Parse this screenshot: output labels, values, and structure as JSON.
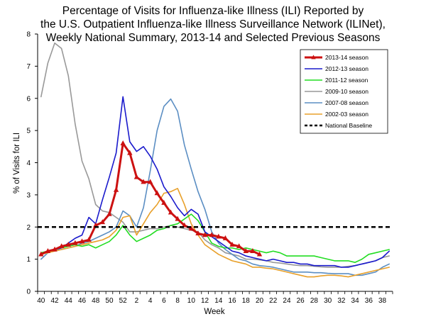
{
  "chart_data": {
    "type": "line",
    "title": [
      "Percentage of Visits for Influenza-like Illness (ILI) Reported by",
      "the U.S. Outpatient Influenza-like Illness Surveillance Network (ILINet),",
      "Weekly National Summary, 2013-14 and Selected Previous Seasons"
    ],
    "xlabel": "Week",
    "ylabel": "% of Visits for ILI",
    "ylim": [
      0,
      8
    ],
    "y_ticks": [
      0,
      1,
      2,
      3,
      4,
      5,
      6,
      7,
      8
    ],
    "x_ticks": [
      "40",
      "42",
      "44",
      "46",
      "48",
      "50",
      "52",
      "2",
      "4",
      "6",
      "8",
      "10",
      "12",
      "14",
      "16",
      "18",
      "20",
      "22",
      "24",
      "26",
      "28",
      "30",
      "32",
      "34",
      "36",
      "38"
    ],
    "weeks": [
      40,
      41,
      42,
      43,
      44,
      45,
      46,
      47,
      48,
      49,
      50,
      51,
      52,
      1,
      2,
      3,
      4,
      5,
      6,
      7,
      8,
      9,
      10,
      11,
      12,
      13,
      14,
      15,
      16,
      17,
      18,
      19,
      20,
      21,
      22,
      23,
      24,
      25,
      26,
      27,
      28,
      29,
      30,
      31,
      32,
      33,
      34,
      35,
      36,
      37,
      38,
      39
    ],
    "legend_position": "top-right",
    "series": [
      {
        "name": "2009-10 season",
        "color": "#999999",
        "values": [
          6.05,
          7.1,
          7.72,
          7.55,
          6.7,
          5.2,
          4.05,
          3.5,
          2.7,
          2.5,
          2.45,
          2.3,
          2.15,
          1.85,
          1.85,
          1.9,
          1.95,
          1.95,
          2.0,
          2.05,
          2.0,
          1.95,
          1.9,
          1.85,
          1.6,
          1.45,
          1.35,
          1.2,
          1.15,
          1.1,
          1.0,
          1.0,
          0.98,
          0.95,
          0.9,
          0.88,
          0.85,
          0.82,
          0.8,
          0.8,
          0.78,
          0.76,
          0.75,
          0.75,
          0.75,
          0.78,
          0.8,
          0.85,
          0.9,
          0.95,
          1.05,
          1.1
        ]
      },
      {
        "name": "2007-08 season",
        "color": "#5b8ec3",
        "values": [
          1.0,
          1.2,
          1.3,
          1.3,
          1.35,
          1.4,
          1.5,
          1.55,
          1.65,
          1.75,
          1.85,
          2.0,
          2.5,
          2.35,
          2.0,
          2.6,
          3.75,
          5.0,
          5.75,
          5.98,
          5.6,
          4.55,
          3.8,
          3.1,
          2.55,
          1.85,
          1.5,
          1.3,
          1.15,
          1.0,
          0.95,
          0.85,
          0.8,
          0.78,
          0.75,
          0.7,
          0.65,
          0.6,
          0.6,
          0.6,
          0.58,
          0.58,
          0.56,
          0.55,
          0.55,
          0.55,
          0.5,
          0.5,
          0.55,
          0.6,
          0.75,
          0.85
        ]
      },
      {
        "name": "2002-03 season",
        "color": "#e8a02a",
        "values": [
          1.15,
          1.2,
          1.25,
          1.3,
          1.35,
          1.4,
          1.45,
          1.5,
          1.55,
          1.6,
          1.7,
          1.9,
          2.3,
          2.35,
          1.75,
          2.1,
          2.45,
          2.7,
          3.05,
          3.1,
          3.2,
          2.7,
          2.1,
          1.75,
          1.45,
          1.3,
          1.15,
          1.05,
          0.95,
          0.9,
          0.85,
          0.75,
          0.75,
          0.72,
          0.7,
          0.65,
          0.6,
          0.55,
          0.5,
          0.45,
          0.45,
          0.48,
          0.5,
          0.5,
          0.48,
          0.45,
          0.5,
          0.55,
          0.6,
          0.65,
          0.7,
          0.75
        ]
      },
      {
        "name": "2011-12 season",
        "color": "#22dd22",
        "values": [
          1.2,
          1.25,
          1.3,
          1.35,
          1.4,
          1.45,
          1.4,
          1.45,
          1.35,
          1.45,
          1.55,
          1.75,
          2.05,
          1.75,
          1.55,
          1.65,
          1.75,
          1.9,
          1.95,
          2.05,
          2.1,
          2.25,
          2.4,
          2.2,
          1.85,
          1.5,
          1.4,
          1.35,
          1.35,
          1.3,
          1.35,
          1.3,
          1.25,
          1.2,
          1.25,
          1.2,
          1.1,
          1.1,
          1.1,
          1.1,
          1.1,
          1.05,
          1.0,
          0.95,
          0.95,
          0.95,
          0.9,
          1.0,
          1.15,
          1.2,
          1.25,
          1.3
        ]
      },
      {
        "name": "2012-13 season",
        "color": "#1a1acc",
        "values": [
          1.15,
          1.25,
          1.3,
          1.35,
          1.5,
          1.65,
          1.75,
          2.3,
          2.1,
          2.85,
          3.55,
          4.3,
          6.05,
          4.65,
          4.35,
          4.5,
          4.2,
          3.8,
          3.25,
          2.95,
          2.6,
          2.35,
          2.55,
          2.4,
          1.85,
          1.7,
          1.55,
          1.4,
          1.25,
          1.2,
          1.1,
          1.05,
          1.0,
          0.95,
          1.0,
          0.95,
          0.9,
          0.9,
          0.85,
          0.85,
          0.8,
          0.8,
          0.8,
          0.8,
          0.75,
          0.75,
          0.8,
          0.85,
          0.9,
          0.95,
          1.05,
          1.25
        ]
      },
      {
        "name": "2013-14 season",
        "color": "#cc1111",
        "values": [
          1.15,
          1.25,
          1.3,
          1.4,
          1.45,
          1.5,
          1.55,
          1.6,
          2.05,
          2.15,
          2.4,
          3.15,
          4.6,
          4.3,
          3.55,
          3.4,
          3.4,
          3.05,
          2.75,
          2.45,
          2.25,
          2.05,
          1.95,
          1.8,
          1.75,
          1.75,
          1.7,
          1.65,
          1.45,
          1.4,
          1.25,
          1.25,
          1.15,
          null,
          null,
          null,
          null,
          null,
          null,
          null,
          null,
          null,
          null,
          null,
          null,
          null,
          null,
          null,
          null,
          null,
          null,
          null
        ]
      }
    ],
    "baseline": {
      "name": "National Baseline",
      "value": 2.0,
      "color": "#000000"
    },
    "legend_order": [
      "2013-14 season",
      "2012-13 season",
      "2011-12 season",
      "2009-10 season",
      "2007-08 season",
      "2002-03 season",
      "National Baseline"
    ]
  }
}
